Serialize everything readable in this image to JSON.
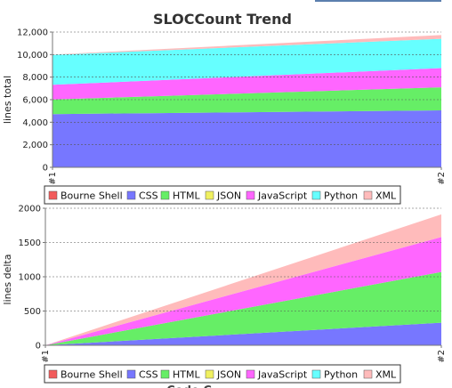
{
  "colors": {
    "Bourne Shell": "#f25c5c",
    "CSS": "#7777ff",
    "HTML": "#66ee66",
    "JSON": "#f0f060",
    "JavaScript": "#ff66ff",
    "Python": "#66ffff",
    "XML": "#ffbbbb"
  },
  "chart_data": [
    {
      "type": "area",
      "stacked": true,
      "title": "SLOCCount Trend",
      "xlabel": "",
      "ylabel": "lines total",
      "x": [
        "#1",
        "#2"
      ],
      "ylim": [
        0,
        12000
      ],
      "yticks": [
        "0",
        "2,000",
        "4,000",
        "6,000",
        "8,000",
        "10,000",
        "12,000"
      ],
      "ytick_values": [
        0,
        2000,
        4000,
        6000,
        8000,
        10000,
        12000
      ],
      "grid": true,
      "legend_position": "bottom",
      "series": [
        {
          "name": "Bourne Shell",
          "values": [
            20,
            20
          ]
        },
        {
          "name": "CSS",
          "values": [
            4700,
            5030
          ]
        },
        {
          "name": "HTML",
          "values": [
            1300,
            2050
          ]
        },
        {
          "name": "JSON",
          "values": [
            0,
            0
          ]
        },
        {
          "name": "JavaScript",
          "values": [
            1300,
            1700
          ]
        },
        {
          "name": "Python",
          "values": [
            2650,
            2600
          ]
        },
        {
          "name": "XML",
          "values": [
            30,
            330
          ]
        }
      ]
    },
    {
      "type": "area",
      "stacked": true,
      "title": "",
      "xlabel": "",
      "ylabel": "lines delta",
      "x": [
        "#1",
        "#2"
      ],
      "ylim": [
        0,
        2000
      ],
      "yticks": [
        "0",
        "500",
        "1000",
        "1500",
        "2000"
      ],
      "ytick_values": [
        0,
        500,
        1000,
        1500,
        2000
      ],
      "grid": true,
      "legend_position": "bottom",
      "series": [
        {
          "name": "Bourne Shell",
          "values": [
            0,
            0
          ]
        },
        {
          "name": "CSS",
          "values": [
            0,
            330
          ]
        },
        {
          "name": "HTML",
          "values": [
            0,
            740
          ]
        },
        {
          "name": "JSON",
          "values": [
            0,
            0
          ]
        },
        {
          "name": "JavaScript",
          "values": [
            0,
            510
          ]
        },
        {
          "name": "Python",
          "values": [
            0,
            0
          ]
        },
        {
          "name": "XML",
          "values": [
            0,
            330
          ]
        }
      ]
    }
  ],
  "legend": [
    "Bourne Shell",
    "CSS",
    "HTML",
    "JSON",
    "JavaScript",
    "Python",
    "XML"
  ],
  "cut_off_title": "Code C..."
}
